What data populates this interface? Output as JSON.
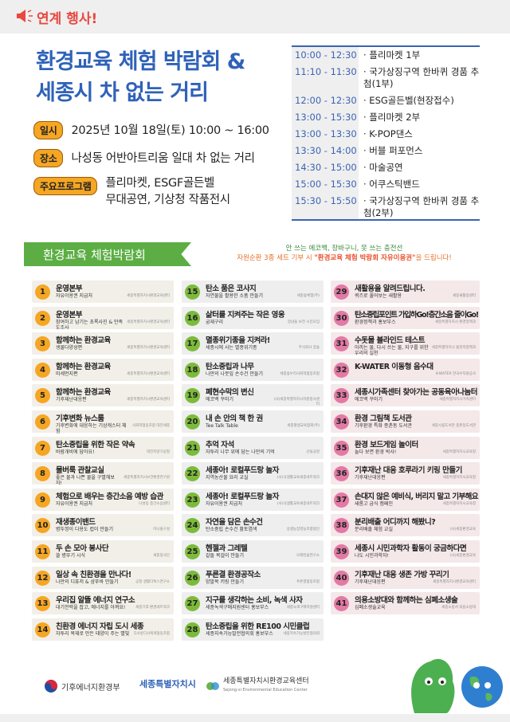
{
  "header": {
    "label": "연계 행사!",
    "icon": "megaphone-icon"
  },
  "title": {
    "line1": "환경교육 체험 박람회 &",
    "line2": "세종시 차 없는 거리"
  },
  "info": [
    {
      "tag": "일시",
      "value": "2025년 10월 18일(토) 10:00 ~ 16:00"
    },
    {
      "tag": "장소",
      "value": "나성동 어반아트리움 일대 차 없는 거리"
    },
    {
      "tag": "주요프로그램",
      "value": "플리마켓, ESGF골든벨",
      "value2": "무대공연, 기상청 작품전시"
    }
  ],
  "schedule": [
    {
      "time": "10:00 - 12:30",
      "event": "· 플리마켓 1부"
    },
    {
      "time": "11:10 - 11:30",
      "event": "· 국가상징구역 한바퀴 경품 추첨(1부)"
    },
    {
      "time": "12:00 - 12:30",
      "event": "· ESG골든벨(현장접수)"
    },
    {
      "time": "13:00 - 15:30",
      "event": "· 플리마켓 2부"
    },
    {
      "time": "13:00 - 13:30",
      "event": "· K-POP댄스"
    },
    {
      "time": "13:30 - 14:00",
      "event": "· 버블 퍼포먼스"
    },
    {
      "time": "14:30 - 15:00",
      "event": "· 마술공연"
    },
    {
      "time": "15:00 - 15:30",
      "event": "· 어쿠스틱밴드"
    },
    {
      "time": "15:30 - 15:50",
      "event": "· 국가상징구역 한바퀴 경품 추첨(2부)"
    }
  ],
  "section": {
    "title": "환경교육 체험박람회",
    "notice1": "안 쓰는 에코백, 장바구니, 못 쓰는 충전선",
    "notice2a": "자원순환 3종 세트 기부 시 ",
    "notice2b": "\"환경교육 체험 박람회 자유이용권\"",
    "notice2c": "을 드립니다!"
  },
  "colors": {
    "col1": "#f5a623",
    "col2": "#7cbb3a",
    "col3": "#e27aa5",
    "title": "#2f62b8",
    "banner": "#5cae44"
  },
  "booths": [
    [
      {
        "n": "1",
        "t": "운영본부",
        "s": "자유이용권 지급처",
        "o": "세종특별자치시환경교육센터"
      },
      {
        "n": "2",
        "t": "운영본부",
        "s": "참여하고 남기는 초록사진 & 만족도조사",
        "o": "세종특별자치시환경교육센터"
      },
      {
        "n": "3",
        "t": "함께하는 환경교육",
        "s": "생물다양성편",
        "o": "세종특별자치시환경교육센터"
      },
      {
        "n": "4",
        "t": "함께하는 환경교육",
        "s": "미세먼지편",
        "o": "세종특별자치시환경교육센터"
      },
      {
        "n": "5",
        "t": "함께하는 환경교육",
        "s": "기후재난대응편",
        "o": "세종특별자치시환경교육센터"
      },
      {
        "n": "6",
        "t": "기후변화 뉴스룸",
        "s": "기후변화에 대응하는 기상캐스터 체험",
        "o": "사회적협동조합 대전세종"
      },
      {
        "n": "7",
        "t": "탄소중립을 위한 작은 약속",
        "s": "바람개비에 담아요!",
        "o": "대전지방기상청"
      },
      {
        "n": "8",
        "t": "물버룩 관찰교실",
        "s": "좋은 물과 나쁜 물을 구별해보자!",
        "o": "세종특별자치시보건환경연구원"
      },
      {
        "n": "9",
        "t": "체험으로 배우는 층간소음 예방 습관",
        "s": "자유이용권 지급처",
        "o": "나성동 층간소음센터"
      },
      {
        "n": "10",
        "t": "재생종이밴드",
        "s": "병뚜껑이 다용도 컵이 만들기",
        "o": "미니물구성"
      },
      {
        "n": "11",
        "t": "두 손 모아 봉사단",
        "s": "쓸 병뚜기 시식",
        "o": "세종봉사단"
      },
      {
        "n": "12",
        "t": "일상 속 친환경을 만나다!",
        "s": "나만의 디퓨저 & 샴푸바 만들기",
        "o": "공정 생활디톡스연구소"
      },
      {
        "n": "13",
        "t": "우리집 알뜰 에너지 연구소",
        "s": "대기전력을 잡고, 에너지를 아껴요!",
        "o": "세종기후·환경네트워크"
      },
      {
        "n": "14",
        "t": "친환경 에너지 자립 도시 세종",
        "s": "자투리 목재로 만든 태양이 주는 별빛",
        "o": "디사방디사렉게협동조합"
      }
    ],
    [
      {
        "n": "15",
        "t": "탄소 품은 코사지",
        "s": "자연물을 활용한 소품 만들기",
        "o": "세종숲체험(주)"
      },
      {
        "n": "16",
        "t": "삶터를 지켜주는 작은 영웅",
        "s": "굼재구리",
        "o": "장남들 보전 시민모임"
      },
      {
        "n": "17",
        "t": "멸종위기종을 지켜라!",
        "s": "세종시에 사는 멸종위기종",
        "o": "주식회사 꿈숲"
      },
      {
        "n": "18",
        "t": "탄소중립과 나무",
        "s": "나만의 나뭇잎 손수건 만들기",
        "o": "세종숲누리사회적협동조합"
      },
      {
        "n": "19",
        "t": "폐현수막의 변신",
        "s": "에코백 꾸미기",
        "o": "(사)세종특별자치시자원봉사센터"
      },
      {
        "n": "20",
        "t": "내 손 안의 책 한 권",
        "s": "Tee Talk Table",
        "o": "세종평생교육협회(주)"
      },
      {
        "n": "21",
        "t": "추억 자석",
        "s": "자투리 나무 위에 담는 나만의 기억",
        "o": "산들공방"
      },
      {
        "n": "22",
        "t": "세종아! 로컬푸드랑 놀자",
        "s": "지역농산물 요리 교실",
        "o": "(사)식생활교육세종네트워크"
      },
      {
        "n": "23",
        "t": "세종아! 로컬푸드랑 놀자",
        "s": "자유이용권 지급처",
        "o": "(사)식생활교육세종네트워크"
      },
      {
        "n": "24",
        "t": "자연을 담은 손수건",
        "s": "탄소중립 손수건 황토염색",
        "o": "상생농장영농조합법인"
      },
      {
        "n": "25",
        "t": "헨젤과 그레텔",
        "s": "갈돌 목걸이 만들기",
        "o": "오래된숲연구소"
      },
      {
        "n": "26",
        "t": "푸른결 환경공작소",
        "s": "양말목 키링 만들기",
        "o": "푸른결협동조합"
      },
      {
        "n": "27",
        "t": "지구를 생각하는 소비, 녹색 사자",
        "s": "세종녹색구매지원센터 홍보부스",
        "o": "세종녹색구매지원센터"
      },
      {
        "n": "28",
        "t": "탄소중립을 위한 RE100 시민클럽",
        "s": "세종지속가능발전협의회 홍보부스",
        "o": "세종지속가능발전협의회"
      }
    ],
    [
      {
        "n": "29",
        "t": "새활용을 알려드립니다.",
        "s": "퀴즈로 풀어보는 새활용",
        "o": "세종새활용센터"
      },
      {
        "n": "30",
        "t": "탄소중립포인트 가입하Go!층간소음 줄이Go!",
        "s": "환경정책과 홍보부스",
        "o": "세종특별자치시 환경정책과"
      },
      {
        "n": "31",
        "t": "수돗물 블라인드 테스트",
        "s": "아끼는 물, 다시 쓰는 물, 지구를 위한 우리의 실천",
        "o": "세종특별자치시 물관리정책과"
      },
      {
        "n": "32",
        "t": "K-WATER 이동형 음수대",
        "s": "",
        "o": "K-WATER 한국수자원공사"
      },
      {
        "n": "33",
        "t": "세종시가족센터 찾아가는 공동육아나눔터",
        "s": "에코백 꾸미기",
        "o": "세종특별자치시가족센터"
      },
      {
        "n": "34",
        "t": "환경 그림책 도서관",
        "s": "기후환경 특화 종촌동 도서관",
        "o": "세종시립도서관 종촌동도서관"
      },
      {
        "n": "35",
        "t": "환경 보드게임 놀이터",
        "s": "놀다 보면 환경 박사!",
        "o": "세종특별자치시교육청"
      },
      {
        "n": "36",
        "t": "기후재난 대응 호루라기 키링 만들기",
        "s": "기후재난대응편",
        "o": "세종특별자치시교육청"
      },
      {
        "n": "37",
        "t": "손대지 않은 예비식, 버리지 말고 기부해요",
        "s": "새롬고 급식 캠페인",
        "o": "세종특별자치시교육청"
      },
      {
        "n": "38",
        "t": "분리배출 어디까지 해봤니?",
        "s": "분리배출 체험 교실",
        "o": "(사)세종환경교육"
      },
      {
        "n": "39",
        "t": "세종시 시민과학자 활동이 궁금하다면",
        "s": "나도 시민과학자!",
        "o": "(사)세종환경교육"
      },
      {
        "n": "40",
        "t": "기후재난 대응 생존 가방 꾸리기",
        "s": "기후재난대응편",
        "o": "세종특별자치시환경교육센터"
      },
      {
        "n": "41",
        "t": "의용소방대와 함께하는 심폐소생술",
        "s": "심폐소생술교육",
        "o": "세종소방서 의용소방대"
      }
    ]
  ],
  "footer": {
    "logo1": "기후에너지환경부",
    "logo2": "세종특별자치시",
    "logo3": "세종특별자치시환경교육센터",
    "logo3_en": "Sejong-si Environmental Education Center"
  }
}
